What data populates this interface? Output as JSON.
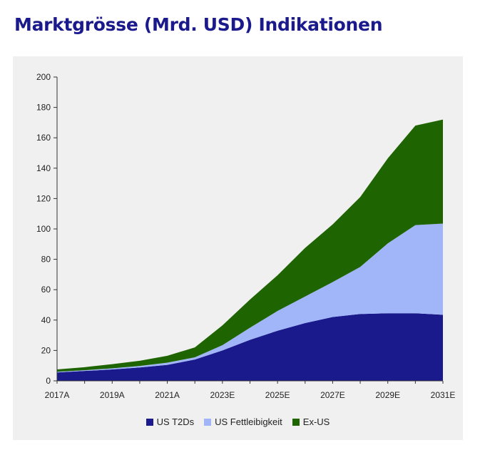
{
  "chart_data": {
    "type": "area",
    "stacked": true,
    "title": "Marktgrösse (Mrd. USD) Indikationen",
    "x": [
      "2017A",
      "2018A",
      "2019A",
      "2020A",
      "2021A",
      "2022A",
      "2023E",
      "2024E",
      "2025E",
      "2026E",
      "2027E",
      "2028E",
      "2029E",
      "2030E",
      "2031E"
    ],
    "xtick_labels": [
      "2017A",
      "2019A",
      "2021A",
      "2023E",
      "2025E",
      "2027E",
      "2029E",
      "2031E"
    ],
    "ylim": [
      0,
      200
    ],
    "yticks": [
      0,
      20,
      40,
      60,
      80,
      100,
      120,
      140,
      160,
      180,
      200
    ],
    "series": [
      {
        "name": "US T2Ds",
        "color": "#1b1a8c",
        "values": [
          5.5,
          6.5,
          7.5,
          8.8,
          10.5,
          14,
          20,
          27,
          33,
          38,
          42,
          44,
          44.5,
          44.5,
          43.5
        ]
      },
      {
        "name": "US Fettleibigkeit",
        "color": "#a0b6f8",
        "values": [
          0.5,
          0.5,
          0.7,
          1,
          1.5,
          1.5,
          3.5,
          8,
          13,
          17.5,
          23,
          31,
          46,
          58,
          60
        ]
      },
      {
        "name": "Ex-US",
        "color": "#1e6400",
        "values": [
          1.5,
          2,
          2.8,
          3.4,
          4.5,
          6.5,
          13,
          18.5,
          23.5,
          32,
          38,
          46,
          56,
          65.5,
          68.5
        ]
      }
    ],
    "legend_position": "bottom-center",
    "grid": false
  }
}
